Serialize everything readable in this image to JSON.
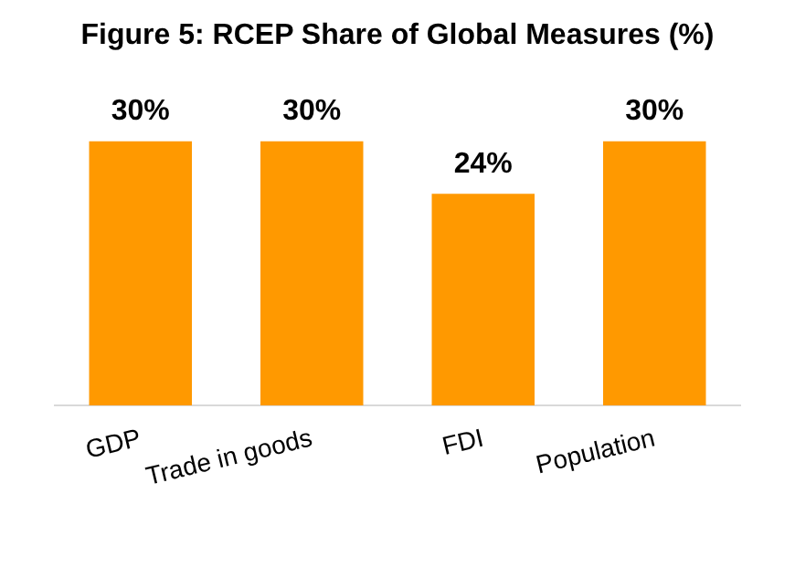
{
  "chart_data": {
    "type": "bar",
    "title": "Figure 5: RCEP Share of Global Measures (%)",
    "categories": [
      "GDP",
      "Trade in goods",
      "FDI",
      "Population"
    ],
    "values": [
      30,
      30,
      24,
      30
    ],
    "value_labels": [
      "30%",
      "30%",
      "24%",
      "30%"
    ],
    "color": "#ff9900",
    "grid": false,
    "legend": false,
    "tick_labels": "x"
  }
}
